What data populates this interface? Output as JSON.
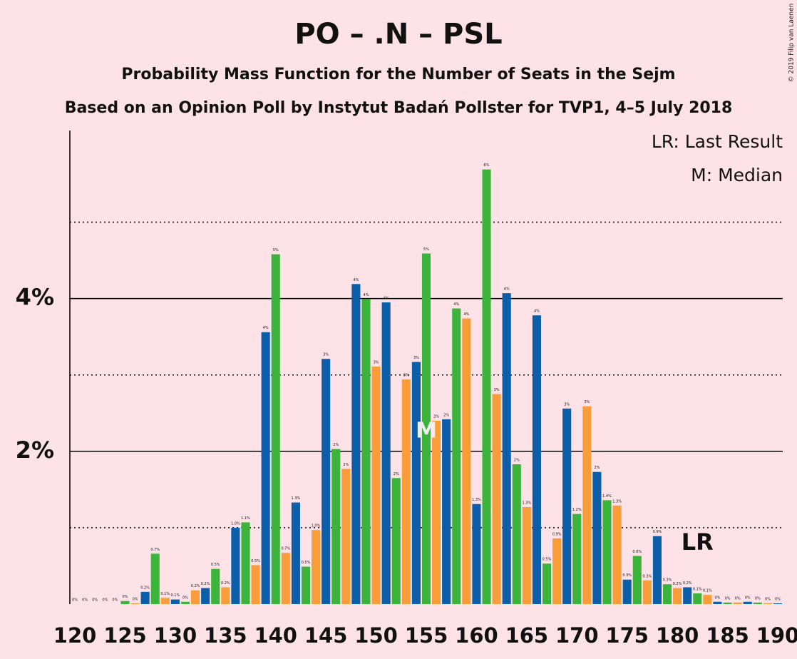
{
  "chart_data": {
    "type": "bar",
    "title": "PO – .N – PSL",
    "subtitle": "Probability Mass Function for the Number of Seats in the Sejm",
    "subtitle2": "Based on an Opinion Poll by Instytut Badań Pollster for TVP1, 4–5 July 2018",
    "copyright": "© 2019 Filip van Laenen",
    "legend": [
      "LR: Last Result",
      "M: Median"
    ],
    "x": [
      120,
      121,
      122,
      123,
      124,
      125,
      126,
      127,
      128,
      129,
      130,
      131,
      132,
      133,
      134,
      135,
      136,
      137,
      138,
      139,
      140,
      141,
      142,
      143,
      144,
      145,
      146,
      147,
      148,
      149,
      150,
      151,
      152,
      153,
      154,
      155,
      156,
      157,
      158,
      159,
      160,
      161,
      162,
      163,
      164,
      165,
      166,
      167,
      168,
      169,
      170,
      171,
      172,
      173,
      174,
      175,
      176,
      177,
      178,
      179,
      180,
      181,
      182,
      183,
      184,
      185,
      186,
      187,
      188,
      189,
      190
    ],
    "values": [
      0,
      0,
      0,
      0,
      0,
      0.04,
      0.01,
      0.16,
      0.66,
      0.08,
      0.06,
      0.03,
      0.18,
      0.21,
      0.46,
      0.22,
      1.0,
      1.07,
      0.51,
      3.56,
      4.58,
      0.67,
      1.33,
      0.49,
      0.97,
      3.21,
      2.03,
      1.77,
      4.19,
      3.99,
      3.11,
      3.95,
      1.65,
      2.94,
      3.17,
      4.59,
      2.4,
      2.42,
      3.87,
      3.74,
      1.31,
      5.69,
      2.75,
      4.07,
      1.83,
      1.27,
      3.78,
      0.53,
      0.86,
      2.56,
      1.18,
      2.59,
      1.73,
      1.36,
      1.29,
      0.32,
      0.63,
      0.31,
      0.89,
      0.26,
      0.21,
      0.22,
      0.14,
      0.12,
      0.03,
      0.02,
      0.02,
      0.03,
      0.02,
      0.01,
      0.01
    ],
    "value_labels": [
      "0%",
      "0%",
      "0%",
      "0%",
      "0%",
      "0%",
      "0%",
      "0.2%",
      "0.7%",
      "0.1%",
      "0.1%",
      "0%",
      "0.2%",
      "0.2%",
      "0.5%",
      "0.2%",
      "1.0%",
      "1.1%",
      "0.5%",
      "4%",
      "5%",
      "0.7%",
      "1.3%",
      "0.5%",
      "1.0%",
      "3%",
      "2%",
      "2%",
      "4%",
      "4%",
      "3%",
      "4%",
      "2%",
      "3%",
      "3%",
      "5%",
      "2%",
      "2%",
      "4%",
      "4%",
      "1.3%",
      "6%",
      "3%",
      "4%",
      "2%",
      "1.3%",
      "4%",
      "0.5%",
      "0.9%",
      "3%",
      "1.2%",
      "3%",
      "2%",
      "1.4%",
      "1.3%",
      "0.3%",
      "0.6%",
      "0.3%",
      "0.9%",
      "0.3%",
      "0.2%",
      "0.2%",
      "0.1%",
      "0.1%",
      "0%",
      "0%",
      "0%",
      "0%",
      "0%",
      "0%",
      "0%"
    ],
    "palette": [
      "#f99d3a",
      "#0d5ea8",
      "#3cb43c"
    ],
    "xlim": [
      119.5,
      190.5
    ],
    "xticks": [
      120,
      125,
      130,
      135,
      140,
      145,
      150,
      155,
      160,
      165,
      170,
      175,
      180,
      185,
      190
    ],
    "ylim": [
      0,
      6.2
    ],
    "yticks": [
      {
        "value": 2,
        "label": "2%"
      },
      {
        "value": 4,
        "label": "4%"
      }
    ],
    "minor_grid": [
      1,
      3,
      5
    ],
    "median": 155,
    "median_label": "M",
    "last_result": 182,
    "last_result_label": "LR"
  }
}
